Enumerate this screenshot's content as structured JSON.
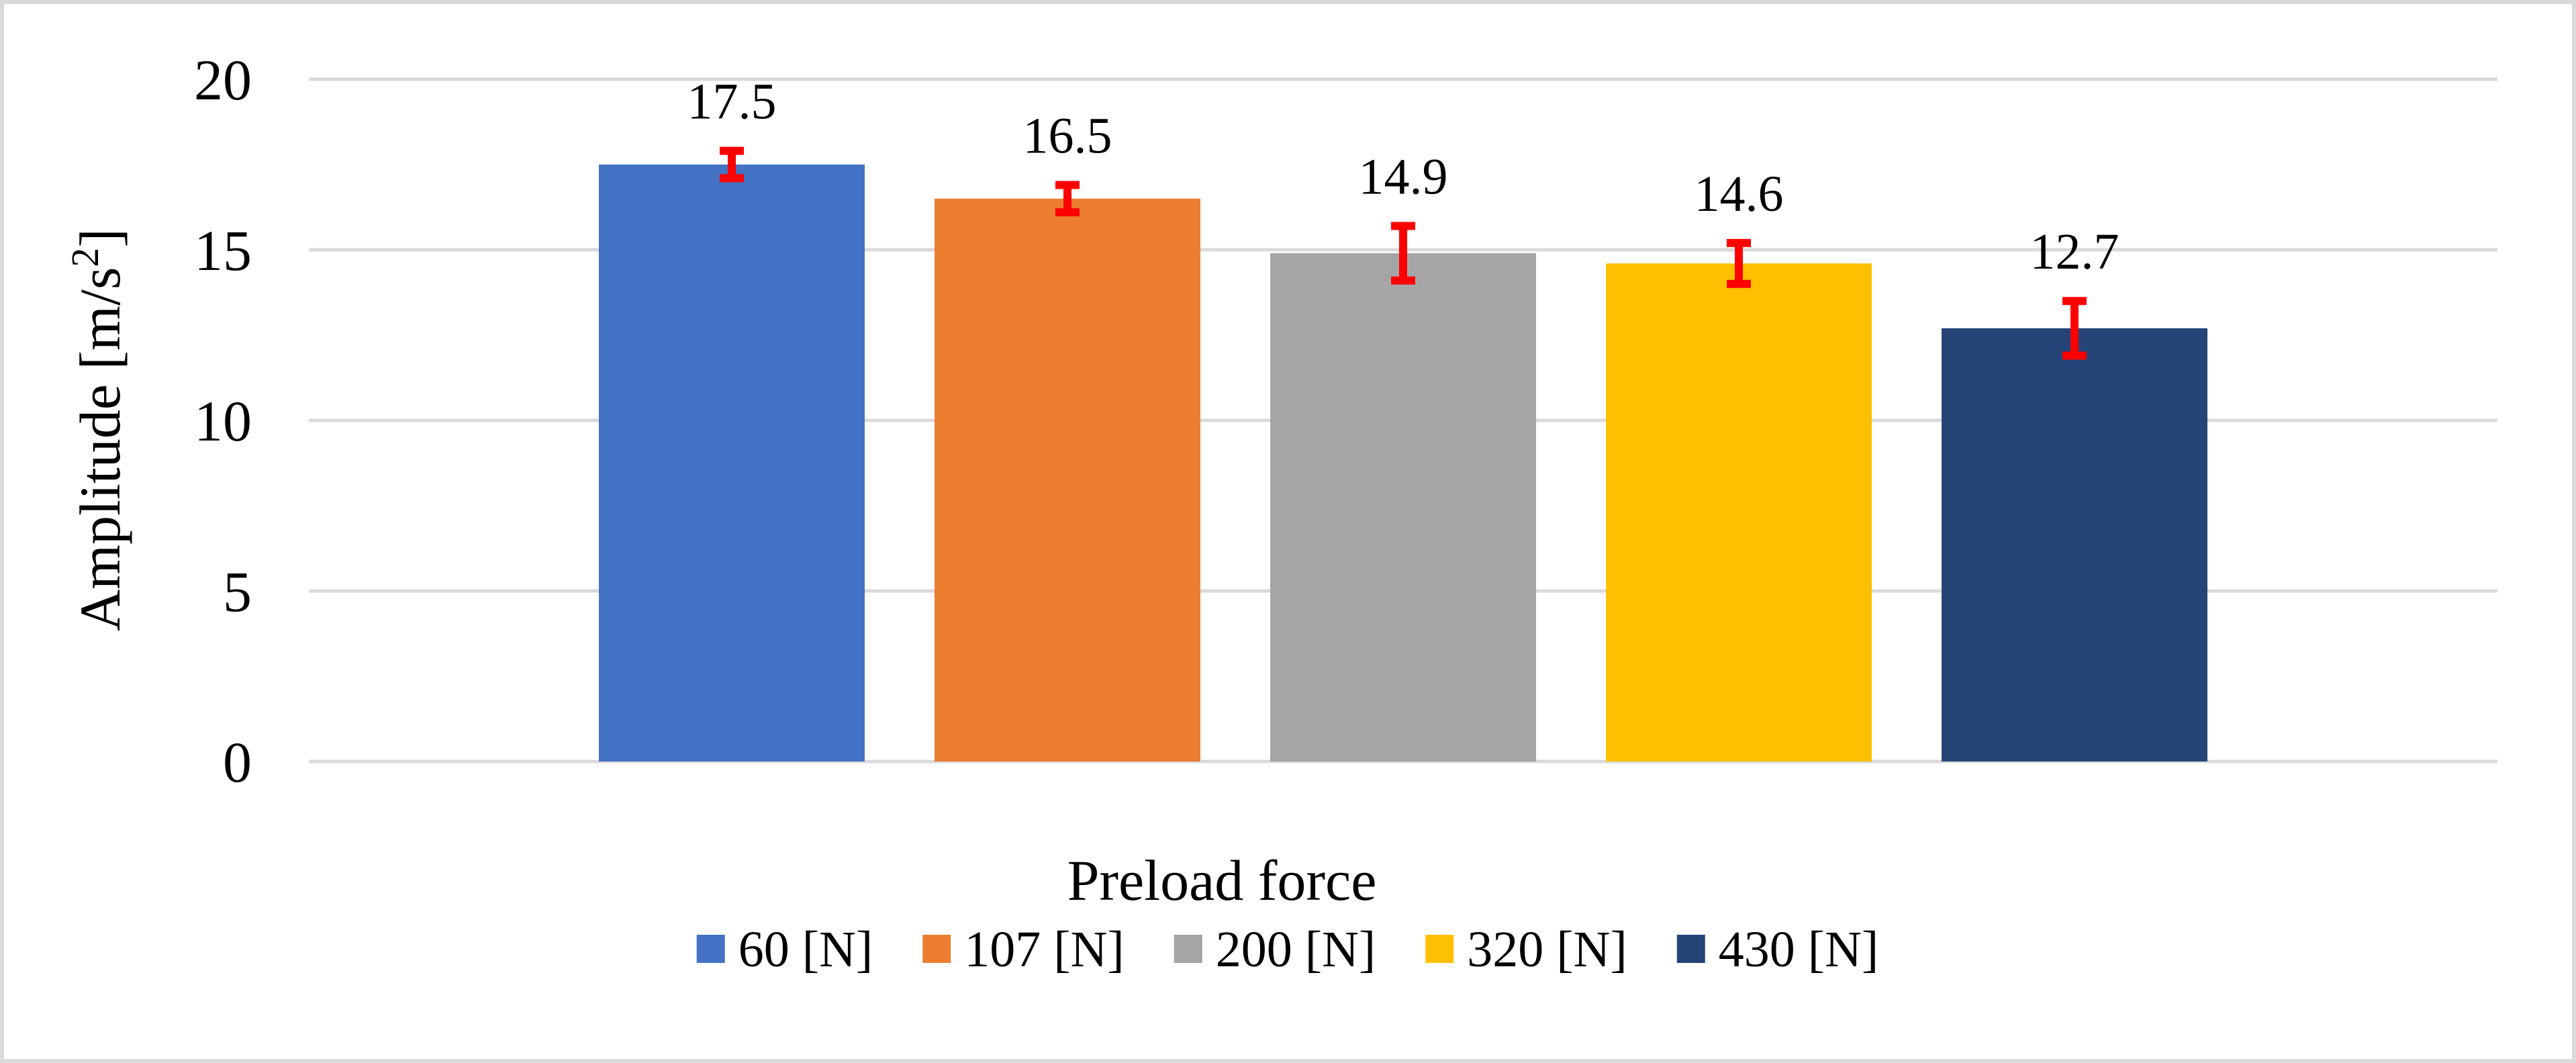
{
  "chart_data": {
    "type": "bar",
    "title": "",
    "xlabel": "Preload force",
    "ylabel": "Amplitude [m/s²]",
    "ylabel_parts": {
      "main": "Amplitude [m/s",
      "sup": "2",
      "end": "]"
    },
    "ylim": [
      0,
      20
    ],
    "yticks": [
      0,
      5,
      10,
      15,
      20
    ],
    "ytick_labels": [
      "0",
      "5",
      "10",
      "15",
      "20"
    ],
    "grid": true,
    "legend_position": "bottom",
    "series": [
      {
        "name": "60 [N]",
        "value": 17.5,
        "label": "17.5",
        "error": 0.4,
        "color": "#4472C4"
      },
      {
        "name": "107 [N]",
        "value": 16.5,
        "label": "16.5",
        "error": 0.4,
        "color": "#ED7D31"
      },
      {
        "name": "200 [N]",
        "value": 14.9,
        "label": "14.9",
        "error": 0.8,
        "color": "#A5A5A5"
      },
      {
        "name": "320 [N]",
        "value": 14.6,
        "label": "14.6",
        "error": 0.6,
        "color": "#FFC000"
      },
      {
        "name": "430 [N]",
        "value": 12.7,
        "label": "12.7",
        "error": 0.8,
        "color": "#264478"
      }
    ],
    "error_bar_color": "#FF0000",
    "gridline_color": "#D9D9D9",
    "frame_color": "#D9D9D9"
  }
}
